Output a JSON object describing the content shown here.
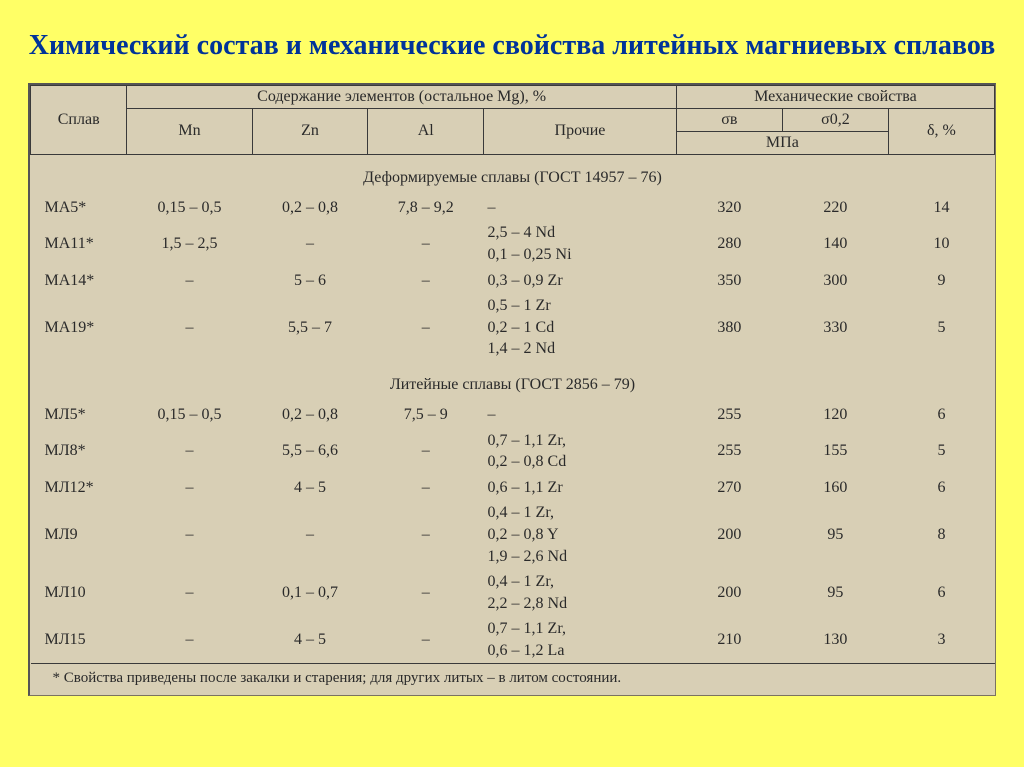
{
  "title": "Химический состав и механические свойства литейных магниевых сплавов",
  "head": {
    "alloy": "Сплав",
    "composition": "Содержание элементов (остальное Mg), %",
    "mech": "Механические свойства",
    "mn": "Mn",
    "zn": "Zn",
    "al": "Al",
    "other": "Прочие",
    "sigma_b": "σв",
    "sigma_02": "σ0,2",
    "mpa": "МПа",
    "delta": "δ, %"
  },
  "sections": {
    "deform": "Деформируемые сплавы  (ГОСТ 14957 – 76)",
    "cast": "Литейные сплавы  (ГОСТ 2856 – 79)"
  },
  "deform_rows": [
    {
      "alloy": "МА5*",
      "mn": "0,15 – 0,5",
      "zn": "0,2 – 0,8",
      "al": "7,8 – 9,2",
      "other": "–",
      "sb": "320",
      "s02": "220",
      "d": "14"
    },
    {
      "alloy": "МА11*",
      "mn": "1,5 – 2,5",
      "zn": "–",
      "al": "–",
      "other": "2,5 – 4  Nd\n0,1 – 0,25  Ni",
      "sb": "280",
      "s02": "140",
      "d": "10"
    },
    {
      "alloy": "МА14*",
      "mn": "–",
      "zn": "5 – 6",
      "al": "–",
      "other": "0,3 – 0,9  Zr",
      "sb": "350",
      "s02": "300",
      "d": "9"
    },
    {
      "alloy": "МА19*",
      "mn": "–",
      "zn": "5,5 – 7",
      "al": "–",
      "other": "0,5 – 1  Zr\n0,2 – 1  Cd\n1,4 – 2  Nd",
      "sb": "380",
      "s02": "330",
      "d": "5"
    }
  ],
  "cast_rows": [
    {
      "alloy": "МЛ5*",
      "mn": "0,15 – 0,5",
      "zn": "0,2 – 0,8",
      "al": "7,5 – 9",
      "other": "–",
      "sb": "255",
      "s02": "120",
      "d": "6"
    },
    {
      "alloy": "МЛ8*",
      "mn": "–",
      "zn": "5,5 – 6,6",
      "al": "–",
      "other": "0,7 – 1,1  Zr,\n0,2 – 0,8  Cd",
      "sb": "255",
      "s02": "155",
      "d": "5"
    },
    {
      "alloy": "МЛ12*",
      "mn": "–",
      "zn": "4 – 5",
      "al": "–",
      "other": "0,6 – 1,1  Zr",
      "sb": "270",
      "s02": "160",
      "d": "6"
    },
    {
      "alloy": "МЛ9",
      "mn": "–",
      "zn": "–",
      "al": "–",
      "other": "0,4 – 1  Zr,\n0,2 – 0,8  Y\n1,9 – 2,6  Nd",
      "sb": "200",
      "s02": "95",
      "d": "8"
    },
    {
      "alloy": "МЛ10",
      "mn": "–",
      "zn": "0,1 – 0,7",
      "al": "–",
      "other": "0,4 – 1  Zr,\n2,2 – 2,8  Nd",
      "sb": "200",
      "s02": "95",
      "d": "6"
    },
    {
      "alloy": "МЛ15",
      "mn": "–",
      "zn": "4 – 5",
      "al": "–",
      "other": "0,7 – 1,1  Zr,\n0,6 – 1,2  La",
      "sb": "210",
      "s02": "130",
      "d": "3"
    }
  ],
  "footnote": "* Свойства приведены после закалки и старения; для других литых – в литом состоянии.",
  "colors": {
    "page_bg": "#ffff66",
    "title_color": "#003399",
    "scan_bg": "#d8cfb5",
    "border": "#3a3a3a"
  },
  "col_widths_pct": [
    10,
    13,
    12,
    12,
    20,
    11,
    11,
    11
  ]
}
